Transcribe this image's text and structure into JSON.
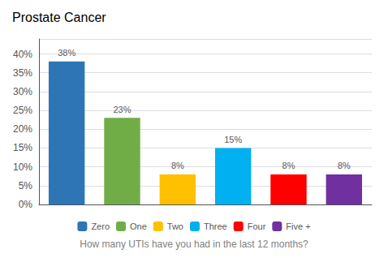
{
  "chart_data": {
    "type": "bar",
    "title": "Prostate Cancer",
    "xlabel": "How many UTIs have you had in the last 12 months?",
    "categories": [
      "Zero",
      "One",
      "Two",
      "Three",
      "Four",
      "Five +"
    ],
    "values": [
      38,
      23,
      8,
      15,
      8,
      8
    ],
    "value_labels": [
      "38%",
      "23%",
      "8%",
      "15%",
      "8%",
      "8%"
    ],
    "colors": [
      "#2E75B6",
      "#70AD47",
      "#FFC000",
      "#00B0F0",
      "#FF0000",
      "#7030A0"
    ],
    "ylim": [
      0,
      44
    ],
    "yticks": [
      {
        "value": 0,
        "label": "0%"
      },
      {
        "value": 5,
        "label": "5%"
      },
      {
        "value": 10,
        "label": "10%"
      },
      {
        "value": 15,
        "label": "15%"
      },
      {
        "value": 20,
        "label": "20%"
      },
      {
        "value": 25,
        "label": "25%"
      },
      {
        "value": 30,
        "label": "30%"
      },
      {
        "value": 35,
        "label": "35%"
      },
      {
        "value": 40,
        "label": "40%"
      }
    ],
    "grid": true,
    "data_labels": true,
    "tick_labels": "y",
    "legend": "bottom"
  }
}
